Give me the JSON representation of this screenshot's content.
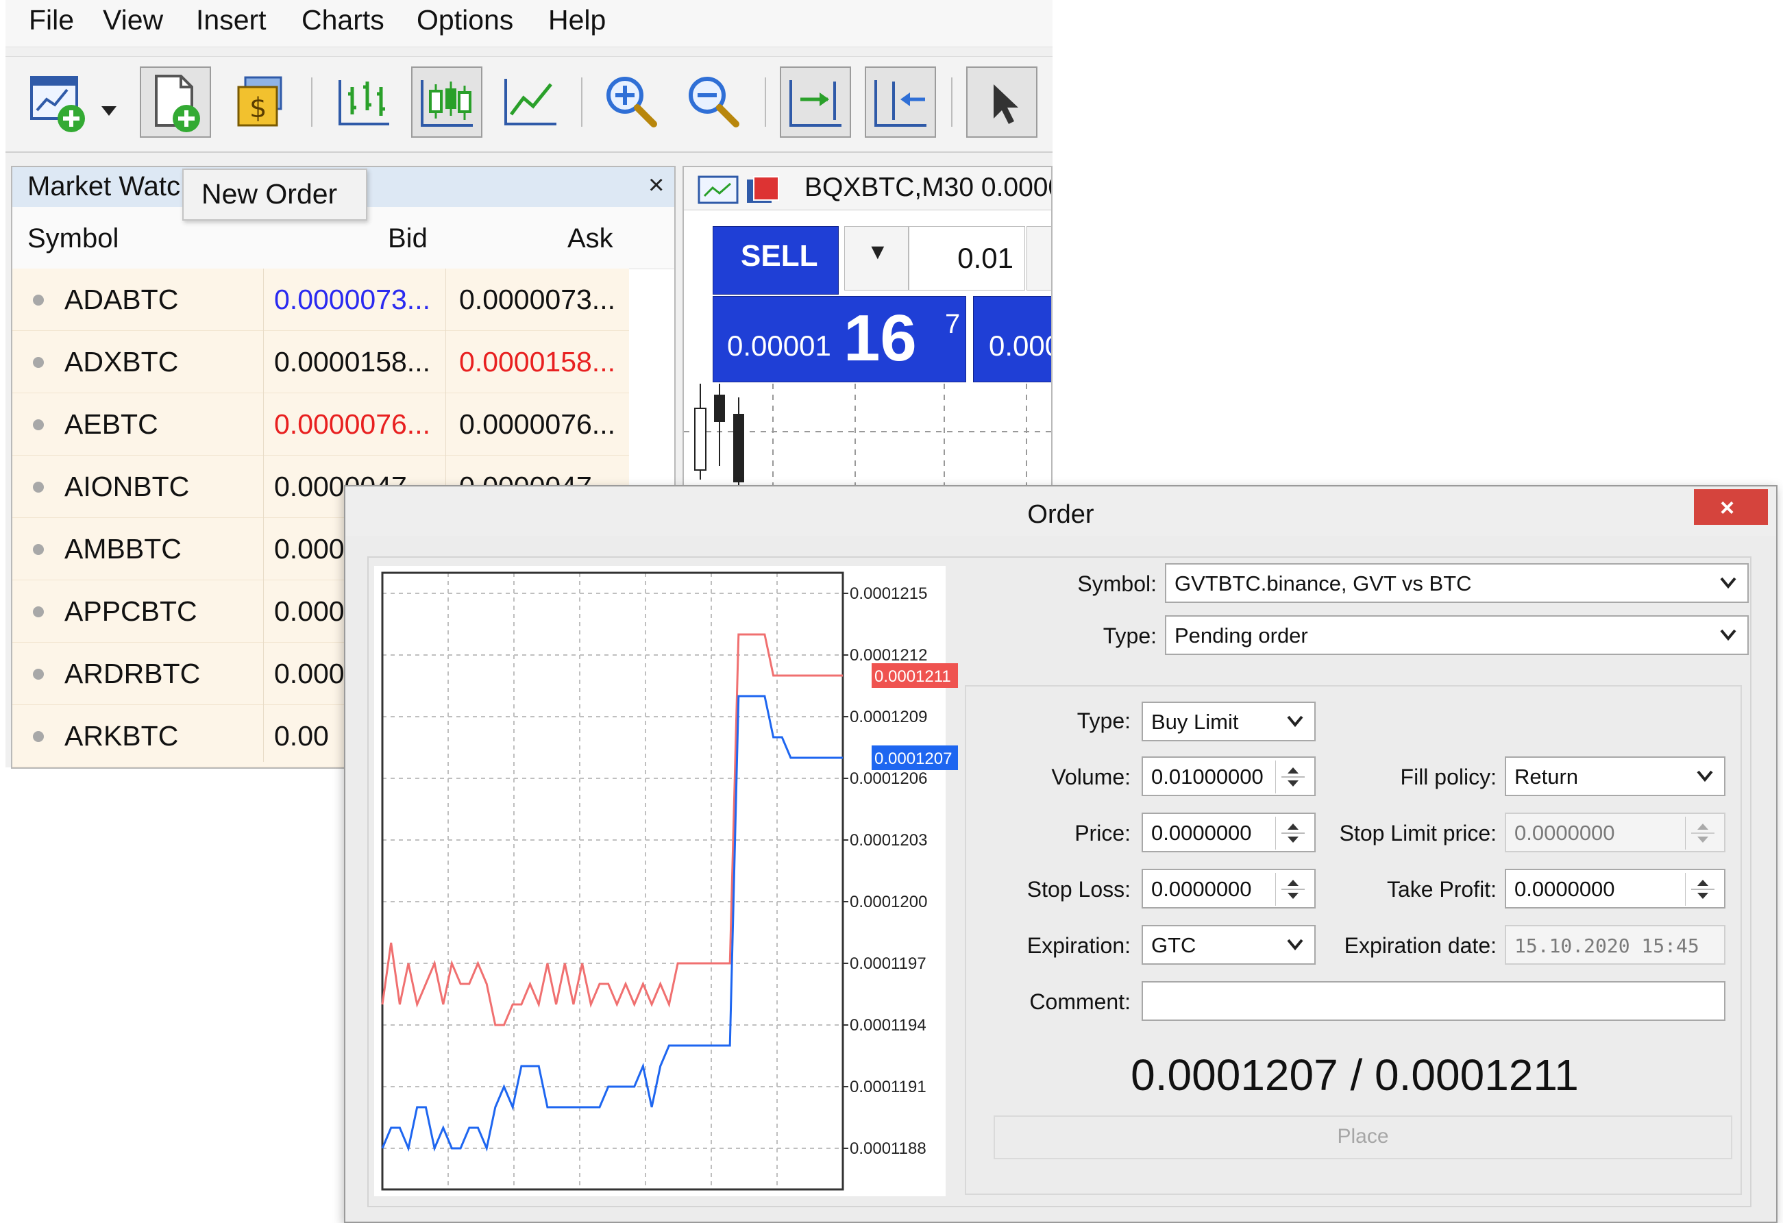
{
  "menu": [
    "File",
    "View",
    "Insert",
    "Charts",
    "Options",
    "Help"
  ],
  "market_watch": {
    "title": "Market Watc",
    "tooltip": "New Order",
    "columns": {
      "symbol": "Symbol",
      "bid": "Bid",
      "ask": "Ask"
    },
    "rows": [
      {
        "symbol": "ADABTC",
        "bid": "0.0000073...",
        "ask": "0.0000073...",
        "bid_color": "#2a2af0",
        "ask_color": "#111111"
      },
      {
        "symbol": "ADXBTC",
        "bid": "0.0000158...",
        "ask": "0.0000158...",
        "bid_color": "#111111",
        "ask_color": "#e82020"
      },
      {
        "symbol": "AEBTC",
        "bid": "0.0000076...",
        "ask": "0.0000076...",
        "bid_color": "#e82020",
        "ask_color": "#111111"
      },
      {
        "symbol": "AIONBTC",
        "bid": "0.0000047...",
        "ask": "0.0000047...",
        "bid_color": "#111111",
        "ask_color": "#111111"
      },
      {
        "symbol": "AMBBTC",
        "bid": "0.000",
        "ask": "",
        "bid_color": "#111111",
        "ask_color": "#111111"
      },
      {
        "symbol": "APPCBTC",
        "bid": "0.000",
        "ask": "",
        "bid_color": "#111111",
        "ask_color": "#111111"
      },
      {
        "symbol": "ARDRBTC",
        "bid": "0.000",
        "ask": "",
        "bid_color": "#111111",
        "ask_color": "#111111"
      },
      {
        "symbol": "ARKBTC",
        "bid": "0.00",
        "ask": "",
        "bid_color": "#111111",
        "ask_color": "#111111"
      }
    ]
  },
  "chart_window": {
    "title": "BQXBTC,M30  0.0000",
    "sell_label": "SELL",
    "volume": "0.01",
    "sell_price_prefix": "0.00001",
    "sell_price_big": "16",
    "sell_price_sup": "7",
    "buy_price_prefix": "0.000"
  },
  "order": {
    "title": "Order",
    "close_label": "×",
    "symbol_label": "Symbol:",
    "symbol_value": "GVTBTC.binance, GVT vs BTC",
    "type_label": "Type:",
    "type_value": "Pending order",
    "pending_type_label": "Type:",
    "pending_type_value": "Buy Limit",
    "volume_label": "Volume:",
    "volume_value": "0.01000000",
    "fill_policy_label": "Fill policy:",
    "fill_policy_value": "Return",
    "price_label": "Price:",
    "price_value": "0.0000000",
    "stop_limit_label": "Stop Limit price:",
    "stop_limit_value": "0.0000000",
    "stop_loss_label": "Stop Loss:",
    "stop_loss_value": "0.0000000",
    "take_profit_label": "Take Profit:",
    "take_profit_value": "0.0000000",
    "expiration_label": "Expiration:",
    "expiration_value": "GTC",
    "expiration_date_label": "Expiration date:",
    "expiration_date_value": "15.10.2020 15:45",
    "comment_label": "Comment:",
    "comment_value": "",
    "quote": "0.0001207 / 0.0001211",
    "place_label": "Place"
  },
  "chart_data": {
    "type": "line",
    "y_ticks": [
      "0.0001215",
      "0.0001212",
      "0.0001209",
      "0.0001206",
      "0.0001203",
      "0.0001200",
      "0.0001197",
      "0.0001194",
      "0.0001191",
      "0.0001188"
    ],
    "ylim": [
      0.0001186,
      0.0001216
    ],
    "current_ask_label": "0.0001211",
    "current_bid_label": "0.0001207",
    "series": [
      {
        "color": "#f07070",
        "values": [
          0.0001195,
          0.0001198,
          0.0001195,
          0.0001197,
          0.0001195,
          0.0001196,
          0.0001197,
          0.0001195,
          0.0001197,
          0.0001196,
          0.0001196,
          0.0001197,
          0.0001196,
          0.0001194,
          0.0001194,
          0.0001195,
          0.0001195,
          0.0001196,
          0.0001195,
          0.0001197,
          0.0001195,
          0.0001197,
          0.0001195,
          0.0001197,
          0.0001195,
          0.0001196,
          0.0001196,
          0.0001195,
          0.0001196,
          0.0001195,
          0.0001196,
          0.0001195,
          0.0001196,
          0.0001195,
          0.0001197,
          0.0001197,
          0.0001197,
          0.0001197,
          0.0001197,
          0.0001197,
          0.0001197,
          0.0001213,
          0.0001213,
          0.0001213,
          0.0001213,
          0.0001211,
          0.0001211,
          0.0001211,
          0.0001211,
          0.0001211,
          0.0001211,
          0.0001211,
          0.0001211,
          0.0001211
        ]
      },
      {
        "color": "#1e66f0",
        "values": [
          0.0001188,
          0.0001189,
          0.0001189,
          0.0001188,
          0.000119,
          0.000119,
          0.0001188,
          0.0001189,
          0.0001188,
          0.0001188,
          0.0001189,
          0.0001189,
          0.0001188,
          0.000119,
          0.0001191,
          0.000119,
          0.0001192,
          0.0001192,
          0.0001192,
          0.000119,
          0.000119,
          0.000119,
          0.000119,
          0.000119,
          0.000119,
          0.000119,
          0.0001191,
          0.0001191,
          0.0001191,
          0.0001191,
          0.0001192,
          0.000119,
          0.0001192,
          0.0001193,
          0.0001193,
          0.0001193,
          0.0001193,
          0.0001193,
          0.0001193,
          0.0001193,
          0.0001193,
          0.000121,
          0.000121,
          0.000121,
          0.000121,
          0.0001208,
          0.0001208,
          0.0001207,
          0.0001207,
          0.0001207,
          0.0001207,
          0.0001207,
          0.0001207,
          0.0001207
        ]
      }
    ],
    "grid": true
  }
}
